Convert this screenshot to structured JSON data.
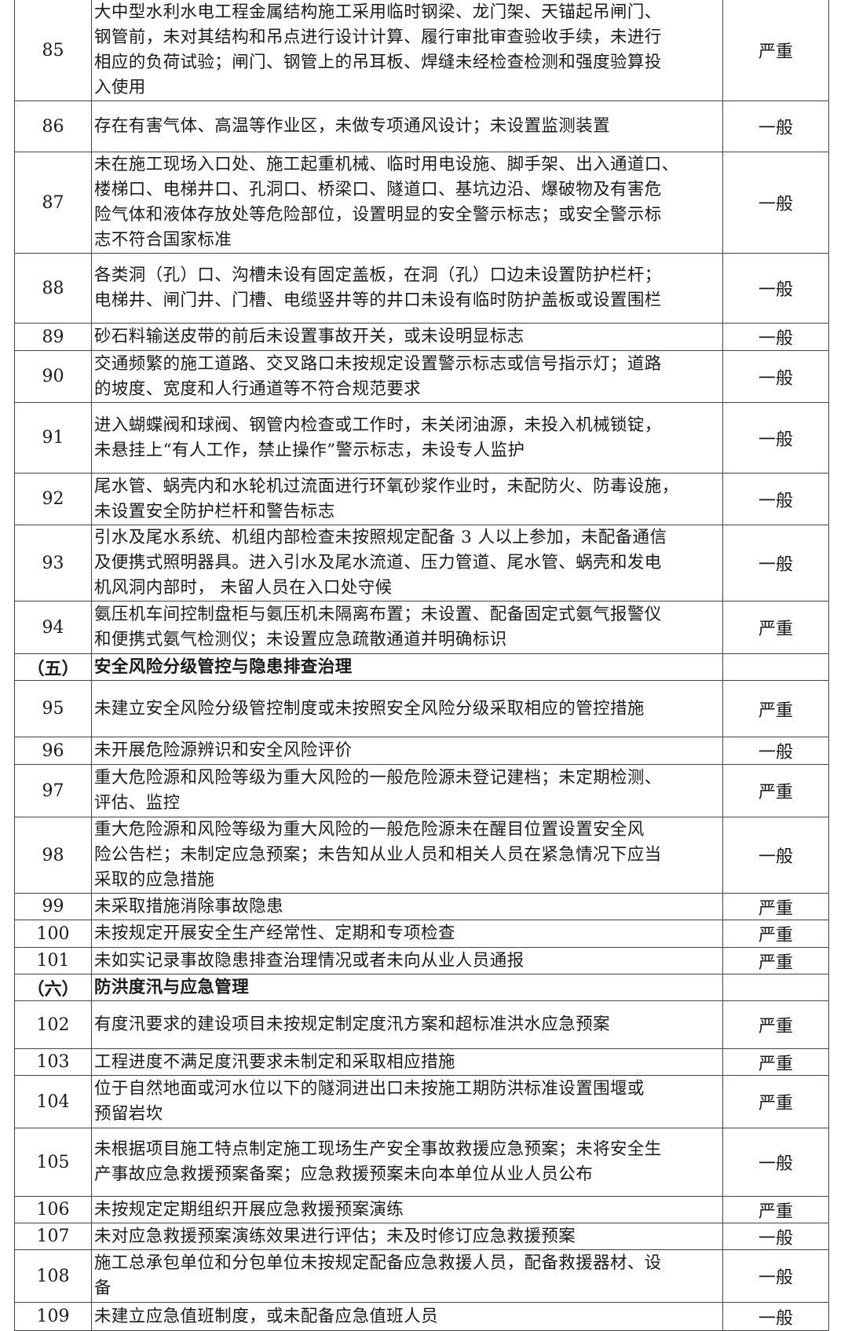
{
  "rows": [
    {
      "no": "85",
      "lines": [
        "大中型水利水电工程金属结构施工采用临时钢梁、龙门架、天锚起吊闸门、",
        "钢管前，未对其结构和吊点进行设计计算、履行审批审查验收手续，未进行",
        "相应的负荷试验；闸门、钢管上的吊耳板、焊缝未经检查检测和强度验算投",
        "入使用"
      ],
      "level": "严重"
    },
    {
      "no": "86",
      "lines": [
        "存在有害气体、高温等作业区，未做专项通风设计；未设置监测装置"
      ],
      "level": "一般"
    },
    {
      "no": "87",
      "lines": [
        "未在施工现场入口处、施工起重机械、临时用电设施、脚手架、出入通道口、",
        "楼梯口、电梯井口、孔洞口、桥梁口、隧道口、基坑边沿、爆破物及有害危",
        "险气体和液体存放处等危险部位，设置明显的安全警示标志；或安全警示标",
        "志不符合国家标准"
      ],
      "level": "一般"
    },
    {
      "no": "88",
      "lines": [
        "各类洞（孔）口、沟槽未设有固定盖板，在洞（孔）口边未设置防护栏杆；",
        "电梯井、闸门井、门槽、电缆竖井等的井口未设有临时防护盖板或设置围栏"
      ],
      "level": "一般"
    },
    {
      "no": "89",
      "lines": [
        "砂石料输送皮带的前后未设置事故开关，或未设明显标志"
      ],
      "level": "一般"
    },
    {
      "no": "90",
      "lines": [
        "交通频繁的施工道路、交叉路口未按规定设置警示标志或信号指示灯；道路",
        "的坡度、宽度和人行通道等不符合规范要求"
      ],
      "level": "一般"
    },
    {
      "no": "91",
      "lines": [
        "进入蝴蝶阀和球阀、钢管内检查或工作时，未关闭油源，未投入机械锁锭，",
        "未悬挂上“有人工作，禁止操作”警示标志，未设专人监护"
      ],
      "level": "一般"
    },
    {
      "no": "92",
      "lines": [
        "尾水管、蜗壳内和水轮机过流面进行环氧砂浆作业时，未配防火、防毒设施，",
        "未设置安全防护栏杆和警告标志"
      ],
      "level": "一般"
    },
    {
      "no": "93",
      "lines": [
        "引水及尾水系统、机组内部检查未按照规定配备 3 人以上参加，未配备通信",
        "及便携式照明器具。进入引水及尾水流道、压力管道、尾水管、蜗壳和发电",
        "机风洞内部时， 未留人员在入口处守候"
      ],
      "level": "一般"
    },
    {
      "no": "94",
      "lines": [
        "氨压机车间控制盘柜与氨压机未隔离布置；未设置、配备固定式氨气报警仪",
        "和便携式氨气检测仪；未设置应急疏散通道并明确标识"
      ],
      "level": "严重"
    },
    {
      "section": true,
      "no": "（五）",
      "lines": [
        "安全风险分级管控与隐患排查治理"
      ],
      "level": ""
    },
    {
      "no": "95",
      "lines": [
        "未建立安全风险分级管控制度或未按照安全风险分级采取相应的管控措施"
      ],
      "level": "严重"
    },
    {
      "no": "96",
      "lines": [
        "未开展危险源辨识和安全风险评价"
      ],
      "level": "一般"
    },
    {
      "no": "97",
      "lines": [
        "重大危险源和风险等级为重大风险的一般危险源未登记建档；未定期检测、",
        "评估、监控"
      ],
      "level": "严重"
    },
    {
      "no": "98",
      "lines": [
        "重大危险源和风险等级为重大风险的一般危险源未在醒目位置设置安全风",
        "险公告栏；未制定应急预案；未告知从业人员和相关人员在紧急情况下应当",
        "采取的应急措施"
      ],
      "level": "一般"
    },
    {
      "no": "99",
      "lines": [
        "未采取措施消除事故隐患"
      ],
      "level": "严重"
    },
    {
      "no": "100",
      "lines": [
        "未按规定开展安全生产经常性、定期和专项检查"
      ],
      "level": "严重"
    },
    {
      "no": "101",
      "lines": [
        "未如实记录事故隐患排查治理情况或者未向从业人员通报"
      ],
      "level": "严重"
    },
    {
      "section": true,
      "no": "（六）",
      "lines": [
        "防洪度汛与应急管理"
      ],
      "level": ""
    },
    {
      "no": "102",
      "lines": [
        "有度汛要求的建设项目未按规定制定度汛方案和超标准洪水应急预案"
      ],
      "level": "严重"
    },
    {
      "no": "103",
      "lines": [
        "工程进度不满足度汛要求未制定和采取相应措施"
      ],
      "level": "严重"
    },
    {
      "no": "104",
      "lines": [
        "位于自然地面或河水位以下的隧洞进出口未按施工期防洪标准设置围堰或",
        "预留岩坎"
      ],
      "level": "严重"
    },
    {
      "no": "105",
      "lines": [
        "未根据项目施工特点制定施工现场生产安全事故救援应急预案；未将安全生",
        "产事故应急救援预案备案；应急救援预案未向本单位从业人员公布"
      ],
      "level": "一般"
    },
    {
      "no": "106",
      "lines": [
        "未按规定定期组织开展应急救援预案演练"
      ],
      "level": "严重"
    },
    {
      "no": "107",
      "lines": [
        "未对应急救援预案演练效果进行评估；未及时修订应急救援预案"
      ],
      "level": "一般"
    },
    {
      "no": "108",
      "lines": [
        "施工总承包单位和分包单位未按规定配备应急救援人员，配备救援器材、设",
        "备"
      ],
      "level": "一般"
    },
    {
      "no": "109",
      "lines": [
        "未建立应急值班制度，或未配备应急值班人员"
      ],
      "level": "一般"
    }
  ]
}
